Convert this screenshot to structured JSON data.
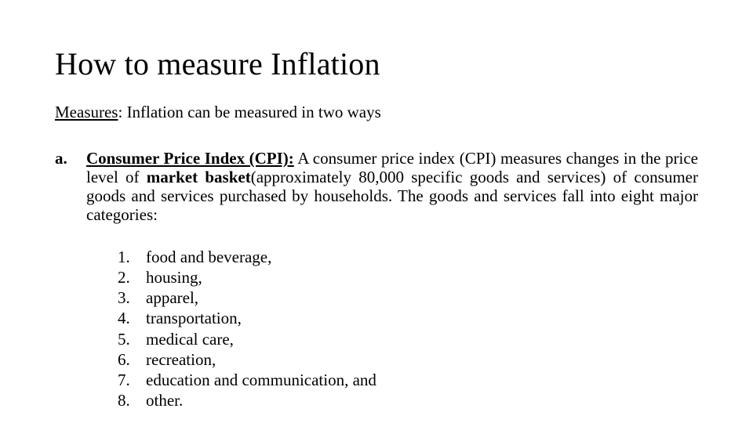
{
  "title": "How to measure Inflation",
  "measures": {
    "label": "Measures",
    "text": ": Inflation can be measured in two ways"
  },
  "item": {
    "marker": "a.",
    "term": "Consumer Price Index (CPI):",
    "def_part1": " A consumer price index (CPI) measures changes in the ",
    "price_level": "price level",
    "def_part2": " of ",
    "market_basket": "market basket",
    "def_part3": "(approximately 80,000 specific goods and services) of consumer goods and services purchased by households. The goods and services fall into eight major categories:"
  },
  "categories": [
    {
      "n": "1.",
      "t": "food and beverage,"
    },
    {
      "n": "2.",
      "t": "housing,"
    },
    {
      "n": "3.",
      "t": "apparel,"
    },
    {
      "n": "4.",
      "t": "transportation,"
    },
    {
      "n": "5.",
      "t": "medical care,"
    },
    {
      "n": "6.",
      "t": "recreation,"
    },
    {
      "n": "7.",
      "t": "education and communication, and"
    },
    {
      "n": "8.",
      "t": "other."
    }
  ],
  "style": {
    "bg": "#ffffff",
    "fg": "#000000",
    "title_fontsize": 40,
    "body_fontsize": 21,
    "font_family": "Times New Roman"
  }
}
